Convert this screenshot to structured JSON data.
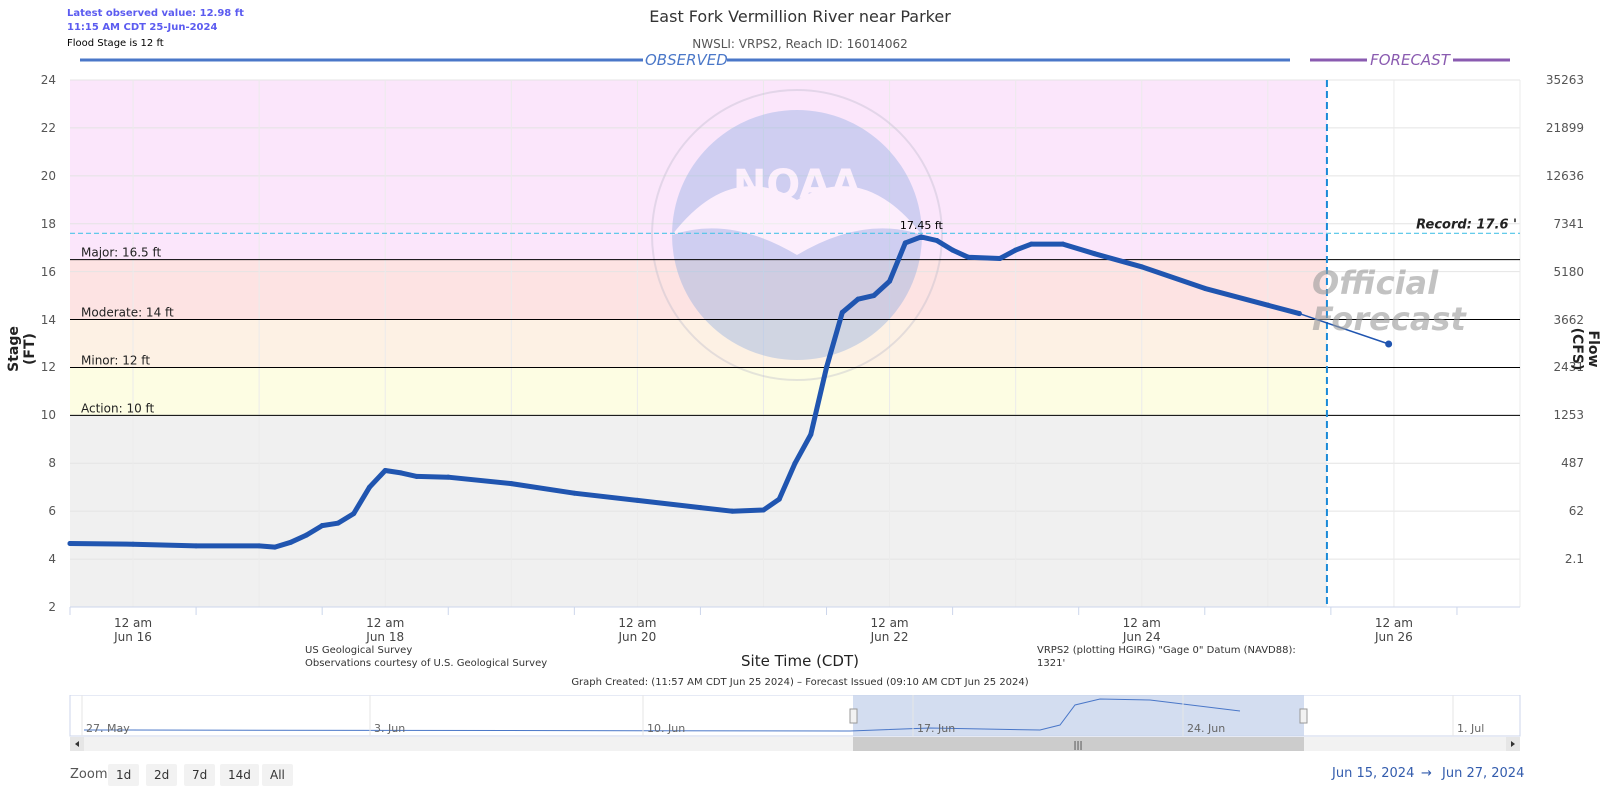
{
  "header": {
    "latest_value": "Latest observed value: 12.98 ft",
    "latest_time": "11:15 AM CDT 25-Jun-2024",
    "flood_stage": "Flood Stage is 12 ft",
    "title": "East Fork Vermillion River near Parker",
    "subtitle": "NWSLI: VRPS2, Reach ID: 16014062"
  },
  "banners": {
    "observed": "OBSERVED",
    "forecast": "FORECAST"
  },
  "watermark": {
    "official_forecast": [
      "Official",
      "Forecast"
    ],
    "noaa_text": "NOAA"
  },
  "colors": {
    "major": "#fbe6fb",
    "moderate": "#fde3e3",
    "minor": "#fdf1e4",
    "action": "#fdfde3",
    "normal": "#f0f0f0",
    "series": "#2055b0",
    "observed_banner": "#4a77c8",
    "forecast_banner": "#8a5bb0",
    "record": "#4ec4e8"
  },
  "chart_data": {
    "type": "line",
    "title": "East Fork Vermillion River near Parker",
    "ylabel": "Stage (FT)",
    "y2label": "Flow (CFS)",
    "xlabel": "Site Time (CDT)",
    "ylim": [
      2,
      24
    ],
    "x_range": [
      "2024-06-15 12:00",
      "2024-06-27 00:00"
    ],
    "yticks": [
      2,
      4,
      6,
      8,
      10,
      12,
      14,
      16,
      18,
      20,
      22,
      24
    ],
    "y2ticks": [
      {
        "stage": 4,
        "label": "2.1"
      },
      {
        "stage": 6,
        "label": "62"
      },
      {
        "stage": 8,
        "label": "487"
      },
      {
        "stage": 10,
        "label": "1253"
      },
      {
        "stage": 12,
        "label": "2431"
      },
      {
        "stage": 14,
        "label": "3662"
      },
      {
        "stage": 16,
        "label": "5180"
      },
      {
        "stage": 18,
        "label": "7341"
      },
      {
        "stage": 20,
        "label": "12636"
      },
      {
        "stage": 22,
        "label": "21899"
      },
      {
        "stage": 24,
        "label": "35263"
      }
    ],
    "xticks": [
      {
        "time": "2024-06-16 00:00",
        "line1": "12 am",
        "line2": "Jun 16"
      },
      {
        "time": "2024-06-18 00:00",
        "line1": "12 am",
        "line2": "Jun 18"
      },
      {
        "time": "2024-06-20 00:00",
        "line1": "12 am",
        "line2": "Jun 20"
      },
      {
        "time": "2024-06-22 00:00",
        "line1": "12 am",
        "line2": "Jun 22"
      },
      {
        "time": "2024-06-24 00:00",
        "line1": "12 am",
        "line2": "Jun 24"
      },
      {
        "time": "2024-06-26 00:00",
        "line1": "12 am",
        "line2": "Jun 26"
      }
    ],
    "thresholds": [
      {
        "label": "Major: 16.5 ft",
        "value": 16.5
      },
      {
        "label": "Moderate: 14 ft",
        "value": 14
      },
      {
        "label": "Minor: 12 ft",
        "value": 12
      },
      {
        "label": "Action: 10 ft",
        "value": 10
      }
    ],
    "record": {
      "label": "Record: 17.6 '",
      "value": 17.6
    },
    "forecast_start": "2024-06-25 11:15",
    "peak_label": {
      "text": "17.45 ft",
      "time": "2024-06-22 03:00",
      "value": 17.45
    },
    "series": [
      {
        "name": "Observed",
        "points": [
          [
            "2024-06-15 12:00",
            4.65
          ],
          [
            "2024-06-16 00:00",
            4.62
          ],
          [
            "2024-06-16 12:00",
            4.55
          ],
          [
            "2024-06-17 00:00",
            4.55
          ],
          [
            "2024-06-17 03:00",
            4.5
          ],
          [
            "2024-06-17 06:00",
            4.7
          ],
          [
            "2024-06-17 09:00",
            5.0
          ],
          [
            "2024-06-17 12:00",
            5.4
          ],
          [
            "2024-06-17 15:00",
            5.5
          ],
          [
            "2024-06-17 18:00",
            5.9
          ],
          [
            "2024-06-17 21:00",
            7.0
          ],
          [
            "2024-06-18 00:00",
            7.7
          ],
          [
            "2024-06-18 03:00",
            7.6
          ],
          [
            "2024-06-18 06:00",
            7.45
          ],
          [
            "2024-06-18 12:00",
            7.42
          ],
          [
            "2024-06-19 00:00",
            7.15
          ],
          [
            "2024-06-19 12:00",
            6.75
          ],
          [
            "2024-06-20 00:00",
            6.45
          ],
          [
            "2024-06-20 12:00",
            6.15
          ],
          [
            "2024-06-20 18:00",
            6.0
          ],
          [
            "2024-06-21 00:00",
            6.05
          ],
          [
            "2024-06-21 03:00",
            6.5
          ],
          [
            "2024-06-21 06:00",
            8.0
          ],
          [
            "2024-06-21 09:00",
            9.2
          ],
          [
            "2024-06-21 12:00",
            12.0
          ],
          [
            "2024-06-21 15:00",
            14.3
          ],
          [
            "2024-06-21 18:00",
            14.85
          ],
          [
            "2024-06-21 21:00",
            15.0
          ],
          [
            "2024-06-22 00:00",
            15.6
          ],
          [
            "2024-06-22 03:00",
            17.2
          ],
          [
            "2024-06-22 06:00",
            17.45
          ],
          [
            "2024-06-22 09:00",
            17.3
          ],
          [
            "2024-06-22 12:00",
            16.9
          ],
          [
            "2024-06-22 15:00",
            16.6
          ],
          [
            "2024-06-22 21:00",
            16.55
          ],
          [
            "2024-06-23 00:00",
            16.9
          ],
          [
            "2024-06-23 03:00",
            17.15
          ],
          [
            "2024-06-23 09:00",
            17.15
          ],
          [
            "2024-06-23 15:00",
            16.75
          ],
          [
            "2024-06-24 00:00",
            16.2
          ],
          [
            "2024-06-24 12:00",
            15.3
          ],
          [
            "2024-06-25 00:00",
            14.6
          ],
          [
            "2024-06-25 06:00",
            14.25
          ]
        ]
      },
      {
        "name": "Forecast",
        "points": [
          [
            "2024-06-25 06:00",
            14.25
          ],
          [
            "2024-06-25 23:00",
            12.98
          ]
        ]
      }
    ]
  },
  "footer": {
    "source_line1": "US Geological Survey",
    "source_line2": "Observations courtesy of U.S. Geological Survey",
    "datum_line1": "VRPS2 (plotting HGIRG) \"Gage 0\" Datum (NAVD88):",
    "datum_line2": "1321'",
    "graph_created": "Graph Created: (11:57 AM CDT Jun 25 2024) – Forecast Issued (09:10 AM CDT Jun 25 2024)"
  },
  "navigator": {
    "labels": [
      "27. May",
      "3. Jun",
      "10. Jun",
      "17. Jun",
      "24. Jun",
      "1. Jul"
    ],
    "selection_start": "2024-06-15 12:00",
    "selection_end": "2024-06-27 00:00"
  },
  "zoom": {
    "label": "Zoom",
    "buttons": [
      "1d",
      "2d",
      "7d",
      "14d",
      "All"
    ]
  },
  "range": {
    "from": "Jun 15, 2024",
    "sep": "→",
    "to": "Jun 27, 2024"
  }
}
